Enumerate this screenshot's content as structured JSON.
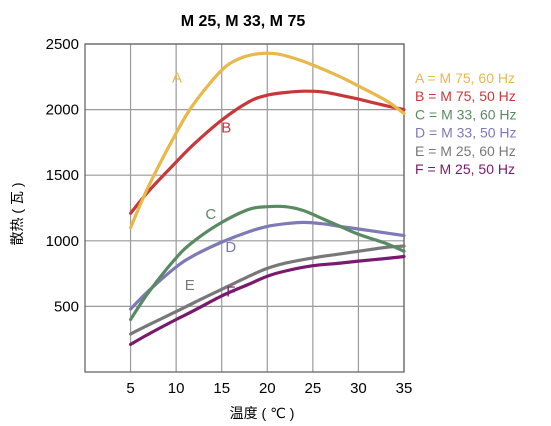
{
  "chart_data": {
    "type": "line",
    "title": "M 25, M 33, M 75",
    "xlabel": "温度 ( ℃ )",
    "ylabel": "散热 ( 瓦 )",
    "xlim": [
      0,
      35
    ],
    "ylim": [
      0,
      2500
    ],
    "x_ticks": [
      5,
      10,
      15,
      20,
      25,
      30,
      35
    ],
    "y_ticks": [
      500,
      1000,
      1500,
      2000,
      2500
    ],
    "grid": true,
    "legend_position": "right",
    "series": [
      {
        "name": "A = M 75, 60 Hz",
        "label": "A",
        "color": "#e8b84a",
        "points": [
          [
            5,
            1100
          ],
          [
            7,
            1420
          ],
          [
            10,
            1820
          ],
          [
            12,
            2050
          ],
          [
            15,
            2300
          ],
          [
            17,
            2390
          ],
          [
            19,
            2425
          ],
          [
            21,
            2425
          ],
          [
            23,
            2390
          ],
          [
            25,
            2340
          ],
          [
            28,
            2250
          ],
          [
            30,
            2180
          ],
          [
            33,
            2070
          ],
          [
            35,
            1970
          ]
        ]
      },
      {
        "name": "B = M 75, 50 Hz",
        "label": "B",
        "color": "#c8383a",
        "points": [
          [
            5,
            1210
          ],
          [
            7,
            1380
          ],
          [
            10,
            1600
          ],
          [
            12,
            1740
          ],
          [
            15,
            1920
          ],
          [
            18,
            2060
          ],
          [
            20,
            2110
          ],
          [
            22,
            2130
          ],
          [
            24,
            2140
          ],
          [
            26,
            2135
          ],
          [
            28,
            2110
          ],
          [
            30,
            2080
          ],
          [
            33,
            2030
          ],
          [
            35,
            2000
          ]
        ]
      },
      {
        "name": "C = M 33, 60 Hz",
        "label": "C",
        "color": "#5a8a62",
        "points": [
          [
            5,
            400
          ],
          [
            7,
            610
          ],
          [
            10,
            870
          ],
          [
            12,
            1000
          ],
          [
            15,
            1140
          ],
          [
            18,
            1240
          ],
          [
            20,
            1260
          ],
          [
            22,
            1260
          ],
          [
            24,
            1230
          ],
          [
            26,
            1170
          ],
          [
            28,
            1110
          ],
          [
            30,
            1050
          ],
          [
            33,
            980
          ],
          [
            35,
            920
          ]
        ]
      },
      {
        "name": "D = M 33, 50 Hz",
        "label": "D",
        "color": "#7e7ab6",
        "points": [
          [
            5,
            480
          ],
          [
            7,
            620
          ],
          [
            10,
            800
          ],
          [
            12,
            890
          ],
          [
            15,
            990
          ],
          [
            18,
            1070
          ],
          [
            20,
            1110
          ],
          [
            22,
            1130
          ],
          [
            24,
            1140
          ],
          [
            26,
            1130
          ],
          [
            28,
            1110
          ],
          [
            30,
            1090
          ],
          [
            33,
            1060
          ],
          [
            35,
            1040
          ]
        ]
      },
      {
        "name": "E = M 25, 60 Hz",
        "label": "E",
        "color": "#787878",
        "points": [
          [
            5,
            290
          ],
          [
            7,
            360
          ],
          [
            10,
            460
          ],
          [
            12,
            530
          ],
          [
            15,
            630
          ],
          [
            18,
            730
          ],
          [
            20,
            790
          ],
          [
            22,
            830
          ],
          [
            25,
            870
          ],
          [
            28,
            900
          ],
          [
            30,
            920
          ],
          [
            33,
            950
          ],
          [
            35,
            960
          ]
        ]
      },
      {
        "name": "F = M 25, 50 Hz",
        "label": "F",
        "color": "#7a1a6e",
        "points": [
          [
            5,
            210
          ],
          [
            7,
            290
          ],
          [
            10,
            400
          ],
          [
            12,
            470
          ],
          [
            15,
            580
          ],
          [
            18,
            670
          ],
          [
            20,
            730
          ],
          [
            22,
            770
          ],
          [
            25,
            810
          ],
          [
            28,
            830
          ],
          [
            30,
            845
          ],
          [
            33,
            865
          ],
          [
            35,
            880
          ]
        ]
      }
    ],
    "curve_labels": [
      {
        "text": "A",
        "x": 10.1,
        "y": 2205
      },
      {
        "text": "B",
        "x": 15.5,
        "y": 1825
      },
      {
        "text": "C",
        "x": 13.8,
        "y": 1165
      },
      {
        "text": "D",
        "x": 16.0,
        "y": 915
      },
      {
        "text": "E",
        "x": 11.5,
        "y": 625
      },
      {
        "text": "F",
        "x": 16.0,
        "y": 575
      }
    ]
  }
}
